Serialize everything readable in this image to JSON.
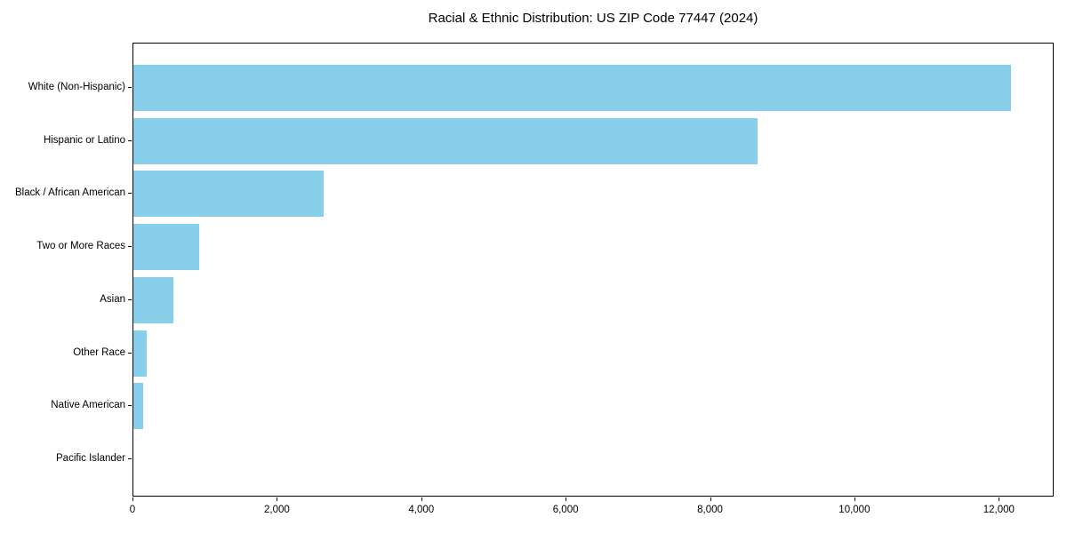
{
  "chart_data": {
    "type": "bar",
    "orientation": "horizontal",
    "title": "Racial & Ethnic Distribution: US ZIP Code 77447 (2024)",
    "categories": [
      "White (Non-Hispanic)",
      "Hispanic or Latino",
      "Black / African American",
      "Two or More Races",
      "Asian",
      "Other Race",
      "Native American",
      "Pacific Islander"
    ],
    "values": [
      12150,
      8640,
      2640,
      910,
      555,
      190,
      135,
      0
    ],
    "xlabel": "",
    "ylabel": "",
    "xlim": [
      0,
      12760
    ],
    "xticks": [
      0,
      2000,
      4000,
      6000,
      8000,
      10000,
      12000
    ],
    "xtick_labels": [
      "0",
      "2,000",
      "4,000",
      "6,000",
      "8,000",
      "10,000",
      "12,000"
    ],
    "bar_color": "#87CEEB",
    "axis_color": "#000000",
    "text_color": "#000000",
    "background_color": "#ffffff",
    "grid": false,
    "legend": null
  }
}
